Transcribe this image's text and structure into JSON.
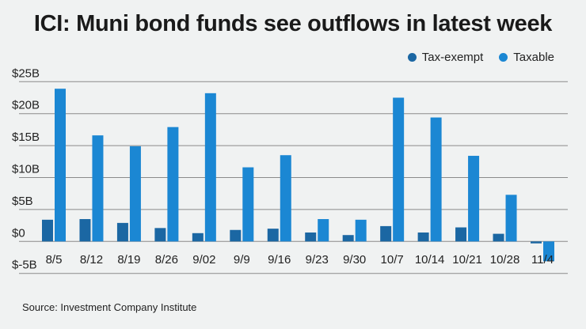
{
  "chart_data": {
    "type": "bar",
    "title": "ICI: Muni bond funds see outflows in latest week",
    "categories": [
      "8/5",
      "8/12",
      "8/19",
      "8/26",
      "9/02",
      "9/9",
      "9/16",
      "9/23",
      "9/30",
      "10/7",
      "10/14",
      "10/21",
      "10/28",
      "11/4"
    ],
    "series": [
      {
        "name": "Tax-exempt",
        "color": "#1b67a3",
        "values": [
          3.4,
          3.5,
          2.9,
          2.1,
          1.3,
          1.8,
          2.0,
          1.4,
          1.0,
          2.4,
          1.4,
          2.2,
          1.2,
          -0.3
        ]
      },
      {
        "name": "Taxable",
        "color": "#1b87d3",
        "values": [
          23.9,
          16.6,
          14.9,
          17.9,
          23.2,
          11.6,
          13.5,
          3.5,
          3.4,
          22.5,
          19.4,
          13.4,
          7.3,
          -3.1
        ]
      }
    ],
    "yticks": [
      -5,
      0,
      5,
      10,
      15,
      20,
      25
    ],
    "ytick_labels": [
      "$-5B",
      "$0",
      "$5B",
      "$10B",
      "$15B",
      "$20B",
      "$25B"
    ],
    "ylim": [
      -5,
      25
    ],
    "grid": true,
    "legend": "top-right",
    "xlabel": "",
    "ylabel": ""
  },
  "source": "Source: Investment Company Institute"
}
